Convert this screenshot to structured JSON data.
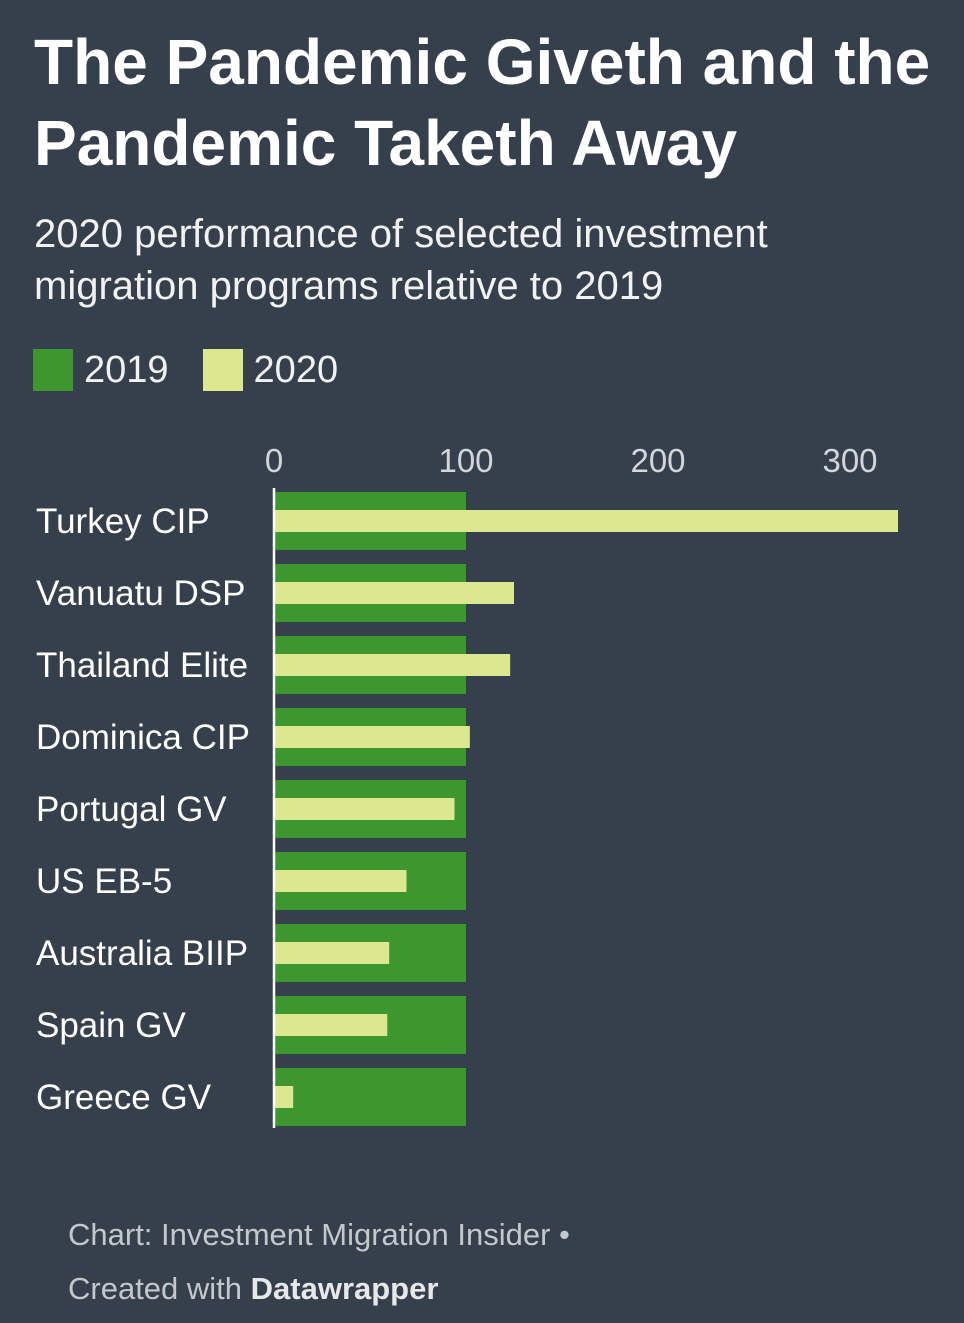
{
  "title": "The Pandemic Giveth and the Pandemic Taketh Away",
  "subtitle": "2020 performance of selected investment migration programs relative to 2019",
  "legend": [
    {
      "label": "2019",
      "color": "#3e962f"
    },
    {
      "label": "2020",
      "color": "#dbe88f"
    }
  ],
  "chart_data": {
    "type": "bar",
    "orientation": "horizontal",
    "categories": [
      "Turkey CIP",
      "Vanuatu DSP",
      "Thailand Elite",
      "Dominica CIP",
      "Portugal GV",
      "US EB-5",
      "Australia BIIP",
      "Spain GV",
      "Greece GV"
    ],
    "series": [
      {
        "name": "2019",
        "values": [
          100,
          100,
          100,
          100,
          100,
          100,
          100,
          100,
          100
        ],
        "color": "#3e962f"
      },
      {
        "name": "2020",
        "values": [
          325,
          125,
          123,
          102,
          94,
          69,
          60,
          59,
          10
        ],
        "color": "#dbe88f"
      }
    ],
    "x_ticks": [
      "0",
      "100",
      "200",
      "300"
    ],
    "xlim": [
      0,
      330
    ],
    "axis_position": "top",
    "grid": false,
    "legend_position": "top-left"
  },
  "footer": {
    "line1": "Chart: Investment Migration Insider •",
    "line2_prefix": "Created with ",
    "line2_brand": "Datawrapper"
  }
}
